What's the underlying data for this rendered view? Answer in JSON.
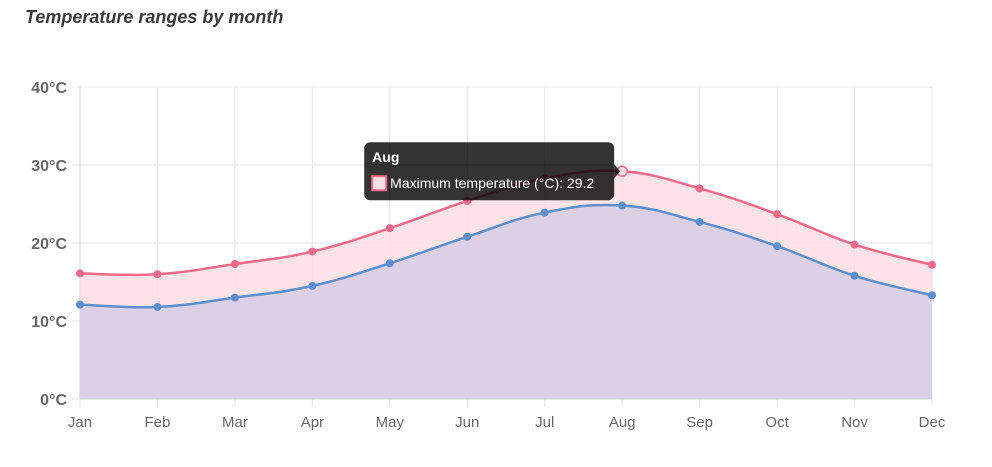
{
  "chart_data": {
    "type": "area",
    "title": "Temperature ranges by month",
    "categories": [
      "Jan",
      "Feb",
      "Mar",
      "Apr",
      "May",
      "Jun",
      "Jul",
      "Aug",
      "Sep",
      "Oct",
      "Nov",
      "Dec"
    ],
    "y_ticks": [
      "0°C",
      "10°C",
      "20°C",
      "30°C",
      "40°C"
    ],
    "ylim": [
      0,
      40
    ],
    "grid": true,
    "series": [
      {
        "name": "Maximum temperature (°C)",
        "color": "#f06a8a",
        "fill": "#fde0e6",
        "values": [
          16.1,
          16.0,
          17.3,
          18.9,
          21.9,
          25.4,
          28.3,
          29.2,
          27.0,
          23.7,
          19.8,
          17.2
        ]
      },
      {
        "name": "",
        "color": "#5d8fd0",
        "fill": "#dcd0e6",
        "values": [
          12.1,
          11.8,
          13.0,
          14.5,
          17.4,
          20.8,
          23.9,
          24.8,
          22.7,
          19.6,
          15.8,
          13.3
        ]
      }
    ],
    "tooltip": {
      "title": "Aug",
      "label": "Maximum temperature (°C): 29.2",
      "series_index": 0,
      "point_index": 7
    }
  }
}
